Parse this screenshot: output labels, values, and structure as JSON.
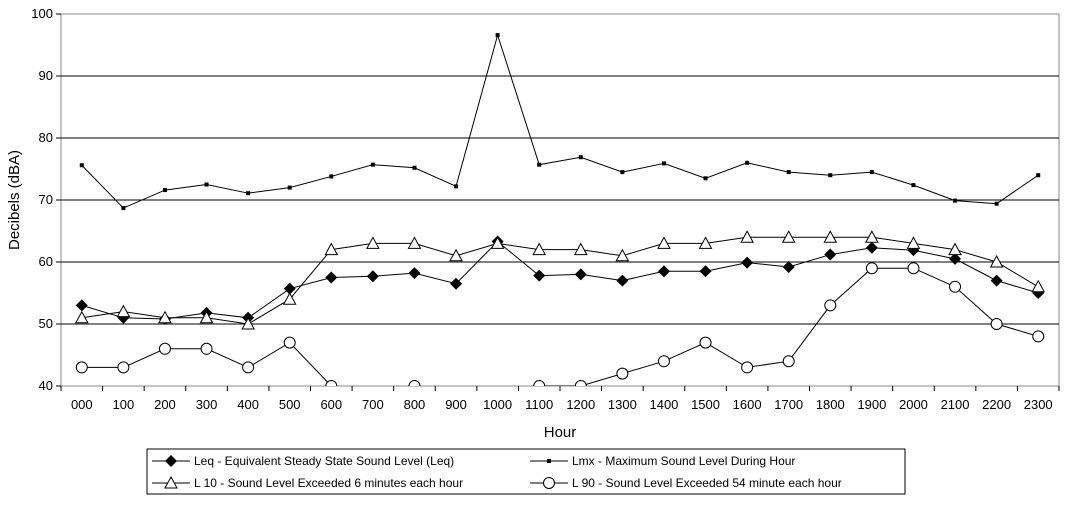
{
  "chart_data": {
    "type": "line",
    "title": "",
    "xlabel": "Hour",
    "ylabel": "Decibels (dBA)",
    "ylim": [
      40,
      100
    ],
    "yticks": [
      "40",
      "50",
      "60",
      "70",
      "80",
      "90",
      "100"
    ],
    "categories": [
      "000",
      "100",
      "200",
      "300",
      "400",
      "500",
      "600",
      "700",
      "800",
      "900",
      "1000",
      "1100",
      "1200",
      "1300",
      "1400",
      "1500",
      "1600",
      "1700",
      "1800",
      "1900",
      "2000",
      "2100",
      "2200",
      "2300"
    ],
    "grid": "horizontal",
    "legend_position": "bottom",
    "series": [
      {
        "name": "Leq - Equivalent Steady State Sound Level (Leq)",
        "marker": "diamond-filled",
        "values": [
          53,
          51,
          50.8,
          51.8,
          51,
          55.7,
          57.5,
          57.7,
          58.2,
          56.5,
          63.3,
          57.8,
          58,
          57,
          58.5,
          58.5,
          59.9,
          59.2,
          61.2,
          62.3,
          61.9,
          60.5,
          57,
          55
        ]
      },
      {
        "name": "Lmx - Maximum Sound Level During Hour",
        "marker": "square-small",
        "values": [
          75.6,
          68.7,
          71.6,
          72.5,
          71.1,
          72,
          73.8,
          75.7,
          75.2,
          72.2,
          96.6,
          75.7,
          76.9,
          74.5,
          75.9,
          73.5,
          76,
          74.5,
          74,
          74.5,
          72.4,
          69.9,
          69.4,
          74
        ]
      },
      {
        "name": "L 10 - Sound Level Exceeded 6 minutes each hour",
        "marker": "triangle-open",
        "values": [
          51,
          52,
          51,
          51,
          50,
          54,
          62,
          63,
          63,
          61,
          63,
          62,
          62,
          61,
          63,
          63,
          64,
          64,
          64,
          64,
          63,
          62,
          60,
          56
        ]
      },
      {
        "name": "L 90 - Sound Level Exceeded 54 minute each hour",
        "marker": "circle-open",
        "values": [
          43,
          43,
          46,
          46,
          43,
          47,
          40,
          39,
          40,
          39,
          39,
          40,
          40,
          42,
          44,
          47,
          43,
          44,
          53,
          59,
          59,
          56,
          50,
          48
        ]
      }
    ]
  }
}
